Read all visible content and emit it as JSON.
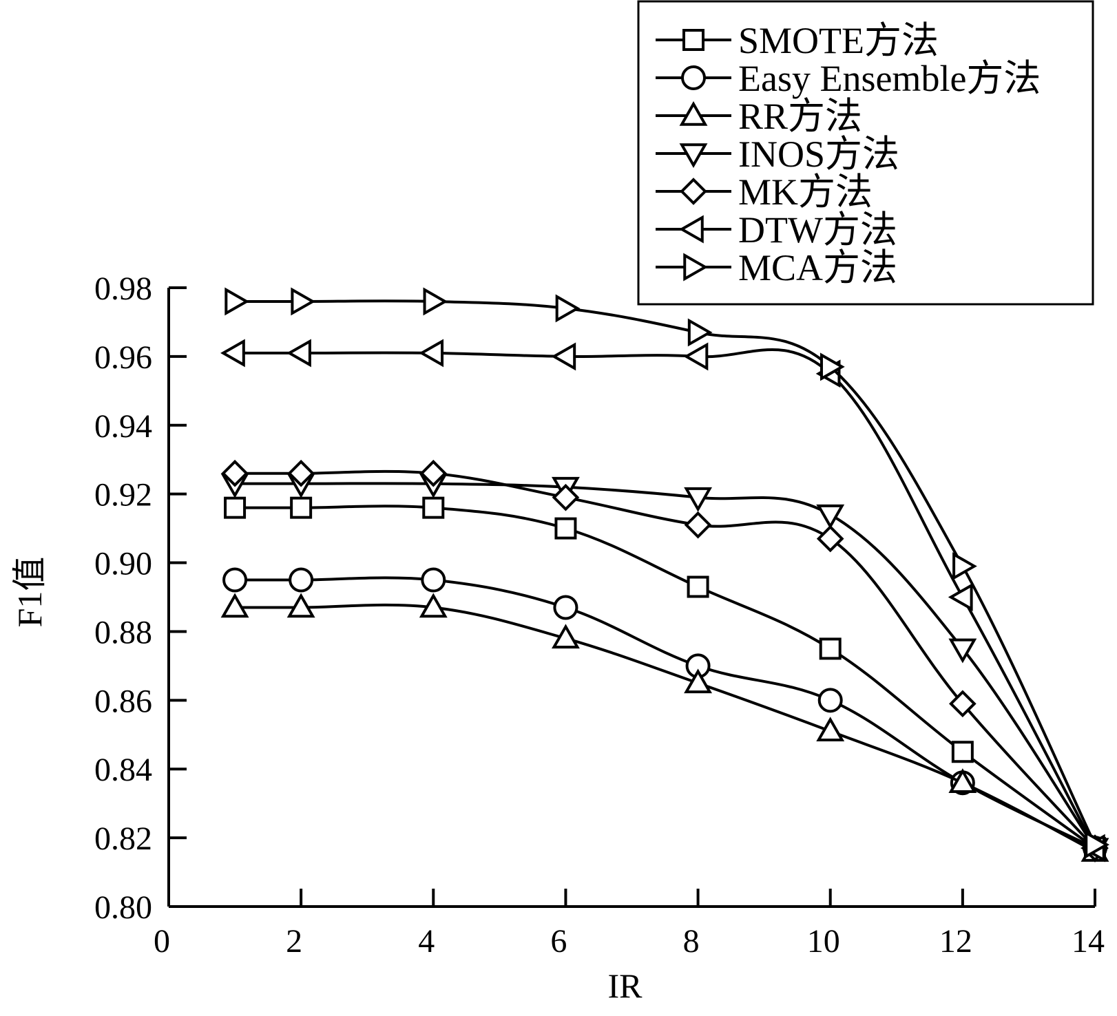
{
  "chart_data": {
    "type": "line",
    "title": "",
    "xlabel": "IR",
    "ylabel": "F1值",
    "xlim": [
      0,
      14
    ],
    "ylim": [
      0.8,
      0.98
    ],
    "x_ticks": [
      0,
      2,
      4,
      6,
      8,
      10,
      12,
      14
    ],
    "x_tick_labels": [
      "0",
      "2",
      "4",
      "6",
      "8",
      "10",
      "12",
      "14"
    ],
    "y_ticks": [
      0.8,
      0.82,
      0.84,
      0.86,
      0.88,
      0.9,
      0.92,
      0.94,
      0.96,
      0.98
    ],
    "y_tick_labels": [
      "0.80",
      "0.82",
      "0.84",
      "0.86",
      "0.88",
      "0.90",
      "0.92",
      "0.94",
      "0.96",
      "0.98"
    ],
    "grid": false,
    "legend_position": "top-right",
    "x": [
      1,
      2,
      4,
      6,
      8,
      10,
      12,
      14
    ],
    "series": [
      {
        "name": "SMOTE方法",
        "marker": "square",
        "values": [
          0.916,
          0.916,
          0.916,
          0.91,
          0.893,
          0.875,
          0.845,
          0.817
        ]
      },
      {
        "name": "Easy Ensemble方法",
        "marker": "circle",
        "values": [
          0.895,
          0.895,
          0.895,
          0.887,
          0.87,
          0.86,
          0.836,
          0.817
        ]
      },
      {
        "name": "RR方法",
        "marker": "triangle-up",
        "values": [
          0.887,
          0.887,
          0.887,
          0.878,
          0.865,
          0.851,
          0.836,
          0.816
        ]
      },
      {
        "name": "INOS方法",
        "marker": "triangle-down",
        "values": [
          0.923,
          0.923,
          0.923,
          0.922,
          0.919,
          0.914,
          0.875,
          0.817
        ]
      },
      {
        "name": "MK方法",
        "marker": "diamond",
        "values": [
          0.926,
          0.926,
          0.926,
          0.919,
          0.911,
          0.907,
          0.859,
          0.817
        ]
      },
      {
        "name": "DTW方法",
        "marker": "triangle-left",
        "values": [
          0.961,
          0.961,
          0.961,
          0.96,
          0.96,
          0.955,
          0.89,
          0.817
        ]
      },
      {
        "name": "MCA方法",
        "marker": "triangle-right",
        "values": [
          0.976,
          0.976,
          0.976,
          0.974,
          0.967,
          0.957,
          0.899,
          0.818
        ]
      }
    ]
  }
}
